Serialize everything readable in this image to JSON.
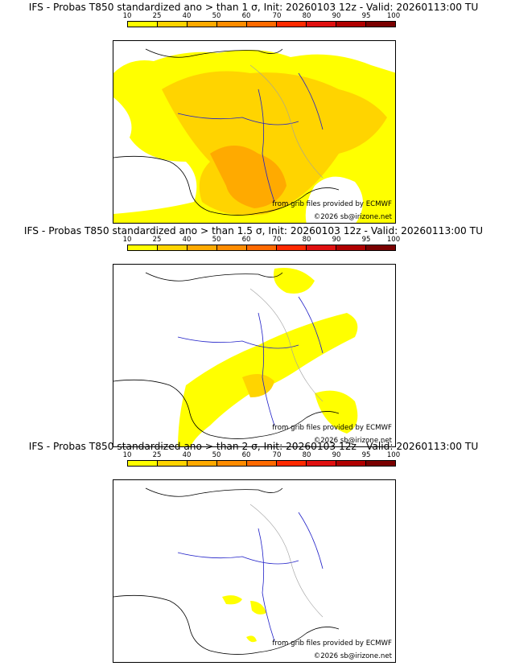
{
  "colorbar": {
    "ticks": [
      "10",
      "25",
      "40",
      "50",
      "60",
      "70",
      "80",
      "90",
      "95",
      "100"
    ],
    "colors": [
      "#ffff00",
      "#ffd400",
      "#ffaa00",
      "#ff8c00",
      "#ff6a00",
      "#ff2a00",
      "#e01010",
      "#b00000",
      "#7a0000"
    ]
  },
  "colors": {
    "land_outline": "#000000",
    "rivers": "#2020c8",
    "borders": "#a0a0a0",
    "prob_low": "#ffff00",
    "prob_mid": "#ffd400",
    "prob_high": "#ffaa00"
  },
  "credits": {
    "grib": "from grib files provided by ECMWF",
    "copyright": "©2026 sb@irizone.net"
  },
  "panels": [
    {
      "title": "IFS - Probas T850  standardized ano > than 1 σ, Init: 20260103 12z - Valid: 20260113:00 TU",
      "threshold": "1 σ",
      "coverage": "extensive"
    },
    {
      "title": "IFS - Probas T850  standardized ano > than 1.5 σ, Init: 20260103 12z - Valid: 20260113:00 TU",
      "threshold": "1.5 σ",
      "coverage": "moderate"
    },
    {
      "title": "IFS - Probas T850  standardized ano > than 2 σ, Init: 20260103 12z - Valid: 20260113:00 TU",
      "threshold": "2 σ",
      "coverage": "minimal"
    }
  ]
}
